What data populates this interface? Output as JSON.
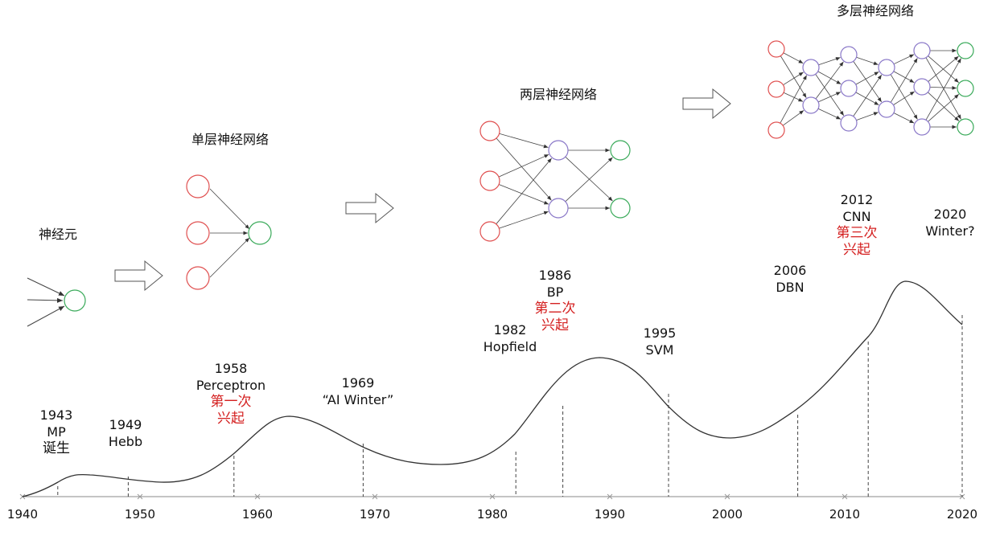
{
  "network_titles": {
    "neuron": "神经元",
    "single_layer": "单层神经网络",
    "two_layer": "两层神经网络",
    "multi_layer": "多层神经网络"
  },
  "timeline": {
    "axis_ticks": [
      "1940",
      "1950",
      "1960",
      "1970",
      "1980",
      "1990",
      "2000",
      "2010",
      "2020"
    ],
    "events": [
      {
        "year": "1943",
        "name": "MP",
        "note": "诞生"
      },
      {
        "year": "1949",
        "name": "Hebb"
      },
      {
        "year": "1958",
        "name": "Perceptron",
        "note": "第一次",
        "note2": "兴起"
      },
      {
        "year": "1969",
        "name": "“AI Winter”"
      },
      {
        "year": "1982",
        "name": "Hopfield"
      },
      {
        "year": "1986",
        "name": "BP",
        "note": "第二次",
        "note2": "兴起"
      },
      {
        "year": "1995",
        "name": "SVM"
      },
      {
        "year": "2006",
        "name": "DBN"
      },
      {
        "year": "2012",
        "name": "CNN",
        "note": "第三次",
        "note2": "兴起"
      },
      {
        "year": "2020",
        "name": "Winter?"
      }
    ]
  },
  "colors": {
    "input_node": "#e05050",
    "hidden_node": "#8a78c8",
    "output_node": "#3aaa5a",
    "highlight_text": "#d42020"
  }
}
